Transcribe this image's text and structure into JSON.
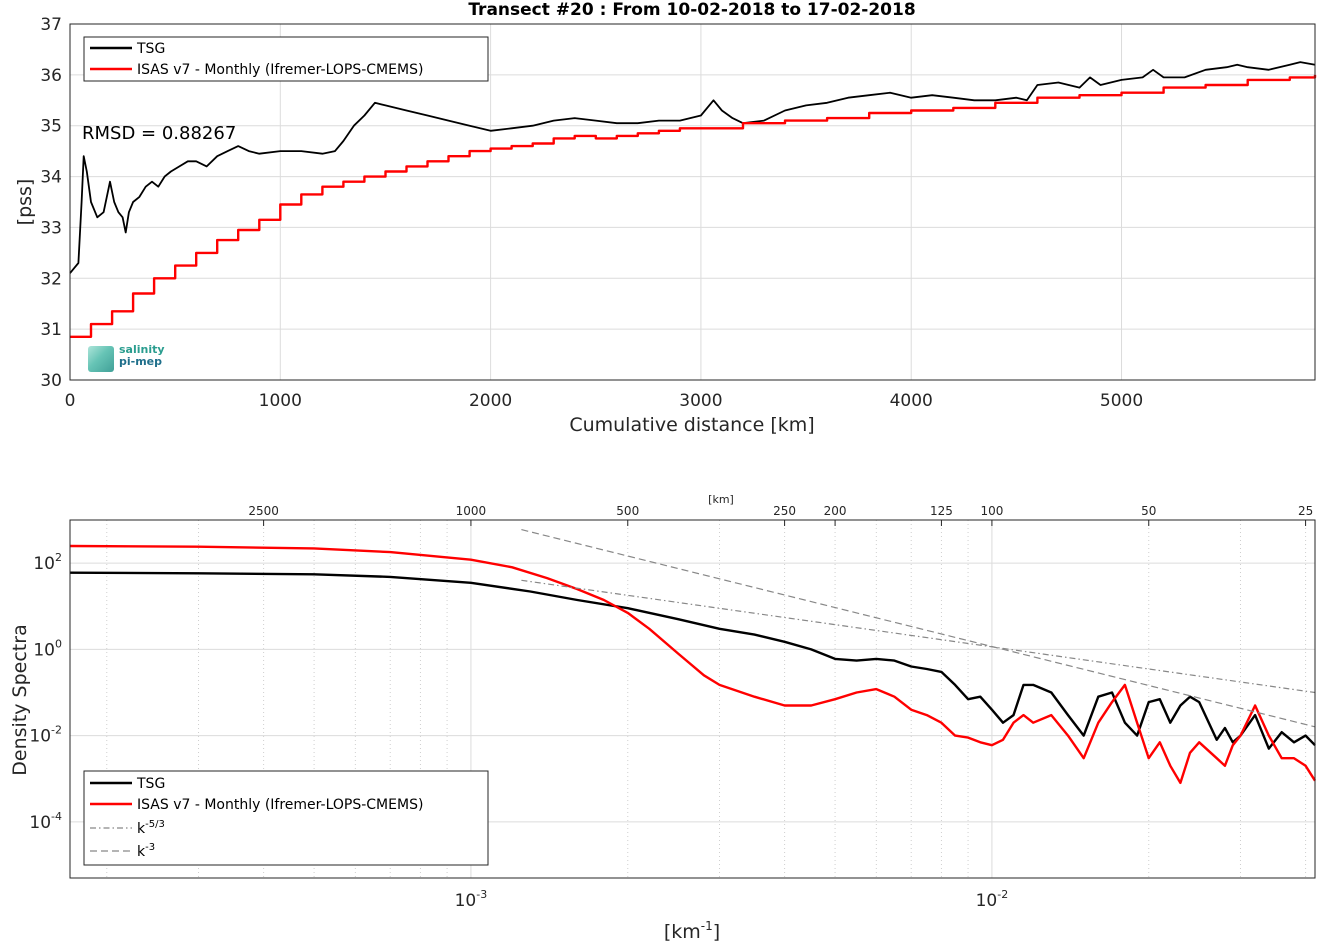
{
  "chart_data": [
    {
      "type": "line",
      "title": "Transect #20 : From 10-02-2018 to 17-02-2018",
      "xlabel": "Cumulative distance [km]",
      "ylabel": "[pss]",
      "xlim": [
        0,
        5920
      ],
      "ylim": [
        30,
        37
      ],
      "xticks": [
        0,
        1000,
        2000,
        3000,
        4000,
        5000
      ],
      "yticks": [
        30,
        31,
        32,
        33,
        34,
        35,
        36,
        37
      ],
      "grid": true,
      "legend_position": "top-left",
      "annotation": "RMSD = 0.88267",
      "series": [
        {
          "name": "TSG",
          "color": "#000000",
          "x": [
            0,
            20,
            40,
            55,
            65,
            80,
            100,
            130,
            160,
            190,
            210,
            230,
            250,
            265,
            280,
            300,
            330,
            360,
            390,
            420,
            450,
            480,
            520,
            560,
            600,
            650,
            700,
            750,
            800,
            850,
            900,
            1000,
            1100,
            1200,
            1260,
            1300,
            1350,
            1400,
            1450,
            1500,
            1600,
            1700,
            1800,
            1900,
            2000,
            2100,
            2200,
            2300,
            2400,
            2500,
            2600,
            2700,
            2800,
            2900,
            3000,
            3060,
            3100,
            3150,
            3200,
            3300,
            3400,
            3500,
            3600,
            3700,
            3800,
            3900,
            4000,
            4100,
            4200,
            4300,
            4400,
            4500,
            4550,
            4600,
            4700,
            4800,
            4850,
            4900,
            5000,
            5100,
            5150,
            5200,
            5300,
            5400,
            5500,
            5550,
            5600,
            5700,
            5800,
            5850,
            5920
          ],
          "y": [
            32.1,
            32.2,
            32.3,
            33.5,
            34.4,
            34.1,
            33.5,
            33.2,
            33.3,
            33.9,
            33.5,
            33.3,
            33.2,
            32.9,
            33.3,
            33.5,
            33.6,
            33.8,
            33.9,
            33.8,
            34.0,
            34.1,
            34.2,
            34.3,
            34.3,
            34.2,
            34.4,
            34.5,
            34.6,
            34.5,
            34.45,
            34.5,
            34.5,
            34.45,
            34.5,
            34.7,
            35.0,
            35.2,
            35.45,
            35.4,
            35.3,
            35.2,
            35.1,
            35.0,
            34.9,
            34.95,
            35.0,
            35.1,
            35.15,
            35.1,
            35.05,
            35.05,
            35.1,
            35.1,
            35.2,
            35.5,
            35.3,
            35.15,
            35.05,
            35.1,
            35.3,
            35.4,
            35.45,
            35.55,
            35.6,
            35.65,
            35.55,
            35.6,
            35.55,
            35.5,
            35.5,
            35.55,
            35.5,
            35.8,
            35.85,
            35.75,
            35.95,
            35.8,
            35.9,
            35.95,
            36.1,
            35.95,
            35.95,
            36.1,
            36.15,
            36.2,
            36.15,
            36.1,
            36.2,
            36.25,
            36.2
          ]
        },
        {
          "name": "ISAS v7 - Monthly (Ifremer-LOPS-CMEMS)",
          "color": "#ff0000",
          "x": [
            0,
            100,
            200,
            300,
            400,
            500,
            600,
            700,
            800,
            900,
            1000,
            1100,
            1200,
            1300,
            1400,
            1500,
            1600,
            1700,
            1800,
            1900,
            2000,
            2100,
            2200,
            2300,
            2400,
            2500,
            2600,
            2700,
            2800,
            2900,
            3000,
            3200,
            3400,
            3600,
            3800,
            4000,
            4200,
            4400,
            4600,
            4800,
            5000,
            5200,
            5400,
            5600,
            5800,
            5920
          ],
          "y": [
            30.85,
            31.1,
            31.35,
            31.7,
            32.0,
            32.25,
            32.5,
            32.75,
            32.95,
            33.15,
            33.45,
            33.65,
            33.8,
            33.9,
            34.0,
            34.1,
            34.2,
            34.3,
            34.4,
            34.5,
            34.55,
            34.6,
            34.65,
            34.75,
            34.8,
            34.75,
            34.8,
            34.85,
            34.9,
            34.95,
            34.95,
            35.05,
            35.1,
            35.15,
            35.25,
            35.3,
            35.35,
            35.45,
            35.55,
            35.6,
            35.65,
            35.75,
            35.8,
            35.9,
            35.95,
            36.0
          ]
        }
      ]
    },
    {
      "type": "line",
      "xlabel": "[km⁻¹]",
      "ylabel": "Density Spectra",
      "top_axis_label": "[km]",
      "xscale": "log",
      "yscale": "log",
      "xlim": [
        0.00017,
        0.0417
      ],
      "ylim": [
        5e-06,
        1000
      ],
      "xtick_labels": [
        "10⁻³",
        "10⁻²"
      ],
      "xtick_values": [
        0.001,
        0.01
      ],
      "ytick_labels": [
        "10²",
        "10⁰",
        "10⁻²",
        "10⁻⁴"
      ],
      "ytick_values": [
        100,
        1,
        0.01,
        0.0001
      ],
      "top_ticks": [
        2500,
        1000,
        500,
        250,
        200,
        125,
        100,
        50,
        25
      ],
      "grid": true,
      "legend_position": "bottom-left",
      "series": [
        {
          "name": "TSG",
          "color": "#000000",
          "x": [
            0.00017,
            0.0003,
            0.0005,
            0.0007,
            0.001,
            0.0013,
            0.0016,
            0.002,
            0.0025,
            0.003,
            0.0035,
            0.004,
            0.0045,
            0.005,
            0.0055,
            0.006,
            0.0065,
            0.007,
            0.0075,
            0.008,
            0.0085,
            0.009,
            0.0095,
            0.01,
            0.0105,
            0.011,
            0.0115,
            0.012,
            0.013,
            0.014,
            0.015,
            0.016,
            0.017,
            0.018,
            0.019,
            0.02,
            0.021,
            0.022,
            0.023,
            0.024,
            0.025,
            0.027,
            0.028,
            0.029,
            0.03,
            0.032,
            0.034,
            0.036,
            0.038,
            0.04,
            0.0417
          ],
          "y": [
            60,
            58,
            55,
            48,
            35,
            22,
            14,
            9,
            5,
            3,
            2.2,
            1.5,
            1.0,
            0.6,
            0.55,
            0.6,
            0.55,
            0.4,
            0.35,
            0.3,
            0.15,
            0.07,
            0.08,
            0.04,
            0.02,
            0.03,
            0.15,
            0.15,
            0.1,
            0.03,
            0.01,
            0.08,
            0.1,
            0.02,
            0.01,
            0.06,
            0.07,
            0.02,
            0.05,
            0.08,
            0.06,
            0.008,
            0.015,
            0.007,
            0.01,
            0.03,
            0.005,
            0.012,
            0.007,
            0.01,
            0.006
          ]
        },
        {
          "name": "ISAS v7 - Monthly (Ifremer-LOPS-CMEMS)",
          "color": "#ff0000",
          "x": [
            0.00017,
            0.0003,
            0.0005,
            0.0007,
            0.001,
            0.0012,
            0.0014,
            0.0016,
            0.0018,
            0.002,
            0.0022,
            0.0025,
            0.0028,
            0.003,
            0.0035,
            0.004,
            0.0045,
            0.005,
            0.0055,
            0.006,
            0.0065,
            0.007,
            0.0075,
            0.008,
            0.0085,
            0.009,
            0.0095,
            0.01,
            0.0105,
            0.011,
            0.0115,
            0.012,
            0.013,
            0.014,
            0.015,
            0.016,
            0.017,
            0.018,
            0.019,
            0.02,
            0.021,
            0.022,
            0.023,
            0.024,
            0.025,
            0.027,
            0.028,
            0.029,
            0.03,
            0.032,
            0.034,
            0.036,
            0.038,
            0.04,
            0.0417
          ],
          "y": [
            250,
            240,
            220,
            180,
            120,
            80,
            45,
            25,
            14,
            7,
            3,
            0.8,
            0.25,
            0.15,
            0.08,
            0.05,
            0.05,
            0.07,
            0.1,
            0.12,
            0.08,
            0.04,
            0.03,
            0.02,
            0.01,
            0.009,
            0.007,
            0.006,
            0.008,
            0.02,
            0.03,
            0.02,
            0.03,
            0.01,
            0.003,
            0.02,
            0.06,
            0.15,
            0.02,
            0.003,
            0.007,
            0.002,
            0.0008,
            0.004,
            0.007,
            0.003,
            0.002,
            0.006,
            0.01,
            0.05,
            0.01,
            0.003,
            0.003,
            0.002,
            0.0009
          ]
        },
        {
          "name": "k⁻⁵ᐟ³",
          "color": "#888888",
          "x": [
            0.00125,
            0.0417
          ],
          "y": [
            40,
            0.1
          ]
        },
        {
          "name": "k⁻³",
          "color": "#888888",
          "x": [
            0.00125,
            0.0417
          ],
          "y": [
            600,
            0.016
          ]
        }
      ]
    }
  ],
  "legend_top": {
    "tsg_label": "TSG",
    "isas_label": "ISAS v7 - Monthly (Ifremer-LOPS-CMEMS)"
  },
  "legend_bottom": {
    "tsg_label": "TSG",
    "isas_label": "ISAS v7 - Monthly (Ifremer-LOPS-CMEMS)",
    "k53_label": "k",
    "k53_exp": "-5/3",
    "k3_label": "k",
    "k3_exp": "-3"
  },
  "logo": {
    "line1": "salinity",
    "line2": "pi-mep"
  },
  "bottom_xlabel": {
    "base": "[km",
    "exp": "-1",
    "close": "]"
  },
  "bottom_ytick_parts": [
    {
      "base": "10",
      "exp": "2"
    },
    {
      "base": "10",
      "exp": "0"
    },
    {
      "base": "10",
      "exp": "-2"
    },
    {
      "base": "10",
      "exp": "-4"
    }
  ],
  "bottom_xtick_parts": [
    {
      "base": "10",
      "exp": "-3"
    },
    {
      "base": "10",
      "exp": "-2"
    }
  ]
}
